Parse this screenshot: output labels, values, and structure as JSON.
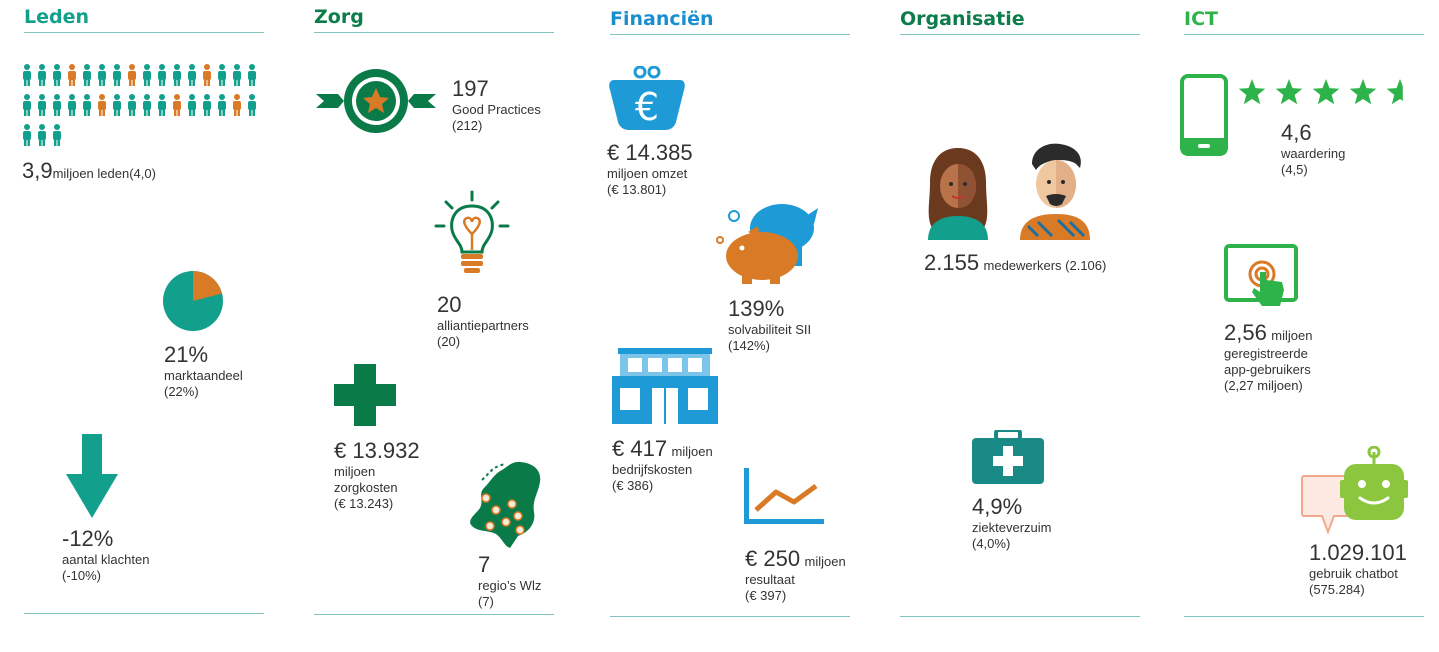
{
  "colors": {
    "teal": "#12a08c",
    "green": "#0a7a48",
    "orange": "#d97a26",
    "blue": "#1e9ad6",
    "lightgreen": "#2eb24a",
    "heading_blue": "#1a8fd0",
    "heading_green": "#0c7c4a"
  },
  "leden": {
    "title": "Leden",
    "members": {
      "value": "3,9",
      "unit": "miljoen leden",
      "prev": "(4,0)"
    },
    "market": {
      "value": "21%",
      "label": "marktaandeel",
      "prev": "(22%)",
      "share_fraction": 0.21
    },
    "complaints": {
      "value": "-12%",
      "label": "aantal klachten",
      "prev": "(-10%)"
    }
  },
  "zorg": {
    "title": "Zorg",
    "practices": {
      "value": "197",
      "label": "Good Practices",
      "prev": "(212)"
    },
    "partners": {
      "value": "20",
      "label": "alliantiepartners",
      "prev": "(20)"
    },
    "costs": {
      "value": "€ 13.932",
      "label1": "miljoen",
      "label2": "zorgkosten",
      "prev": "(€ 13.243)"
    },
    "regions": {
      "value": "7",
      "label": "regio’s Wlz",
      "prev": "(7)"
    }
  },
  "financien": {
    "title": "Financiën",
    "revenue": {
      "value": "€ 14.385",
      "label": "miljoen omzet",
      "prev": "(€ 13.801)"
    },
    "solvency": {
      "value": "139%",
      "label": "solvabiliteit SII",
      "prev": "(142%)"
    },
    "opex": {
      "value": "€ 417",
      "unit": "miljoen",
      "label": "bedrijfskosten",
      "prev": "(€ 386)"
    },
    "result": {
      "value": "€ 250",
      "unit": "miljoen",
      "label": "resultaat",
      "prev": "(€ 397)"
    }
  },
  "organisatie": {
    "title": "Organisatie",
    "staff": {
      "value": "2.155",
      "label": "medewerkers (2.106)"
    },
    "absence": {
      "value": "4,9%",
      "label": "ziekteverzuim",
      "prev": "(4,0%)"
    }
  },
  "ict": {
    "title": "ICT",
    "rating": {
      "value": "4,6",
      "label": "waardering",
      "prev": "(4,5)",
      "stars": 4.6
    },
    "app": {
      "value": "2,56",
      "unit": "miljoen",
      "label1": "geregistreerde",
      "label2": "app-gebruikers",
      "prev": "(2,27 miljoen)"
    },
    "chatbot": {
      "value": "1.029.101",
      "label": "gebruik chatbot",
      "prev": "(575.284)"
    }
  }
}
